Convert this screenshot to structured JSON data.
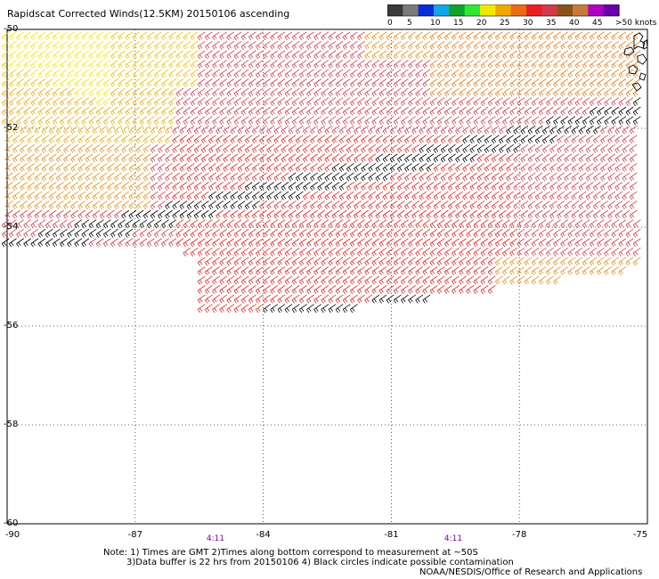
{
  "title": "Rapidscat Corrected Winds(12.5KM) 20150106 ascending",
  "colorbar": {
    "colors": [
      "#3a3a3a",
      "#7a7a7a",
      "#0a2bd8",
      "#12a6e8",
      "#0fa32a",
      "#33e633",
      "#f0e800",
      "#f0a800",
      "#ea6a15",
      "#e8201e",
      "#d23a4c",
      "#8a5218",
      "#c77a3a",
      "#b000c0",
      "#6a00aa"
    ],
    "labels": [
      "0",
      "5",
      "10",
      "15",
      "20",
      "25",
      "30",
      "35",
      "40",
      "45",
      ">50 knots"
    ],
    "label_positions_knots": [
      0,
      5,
      10,
      15,
      20,
      25,
      30,
      35,
      40,
      45,
      50
    ]
  },
  "map": {
    "lon_range": [
      -90,
      -75
    ],
    "lat_range": [
      -60,
      -50
    ],
    "lon_ticks": [
      "-90",
      "-87",
      "-84",
      "-81",
      "-78",
      "-75"
    ],
    "lat_ticks": [
      "-50",
      "-52",
      "-54",
      "-56",
      "-58",
      "-60"
    ],
    "timestamps": [
      "4:11",
      "4:11"
    ],
    "data_gap": "lower-left and southern area without wind vectors",
    "land_outline": "top-right corner"
  },
  "notes": {
    "line1": "Note: 1) Times are GMT 2)Times along bottom correspond to measurement at ~50S",
    "line2": "3)Data buffer is 22 hrs from 20150106 4) Black circles indicate possible contamination",
    "line3": "NOAA/NESDIS/Office of Research and Applications"
  }
}
